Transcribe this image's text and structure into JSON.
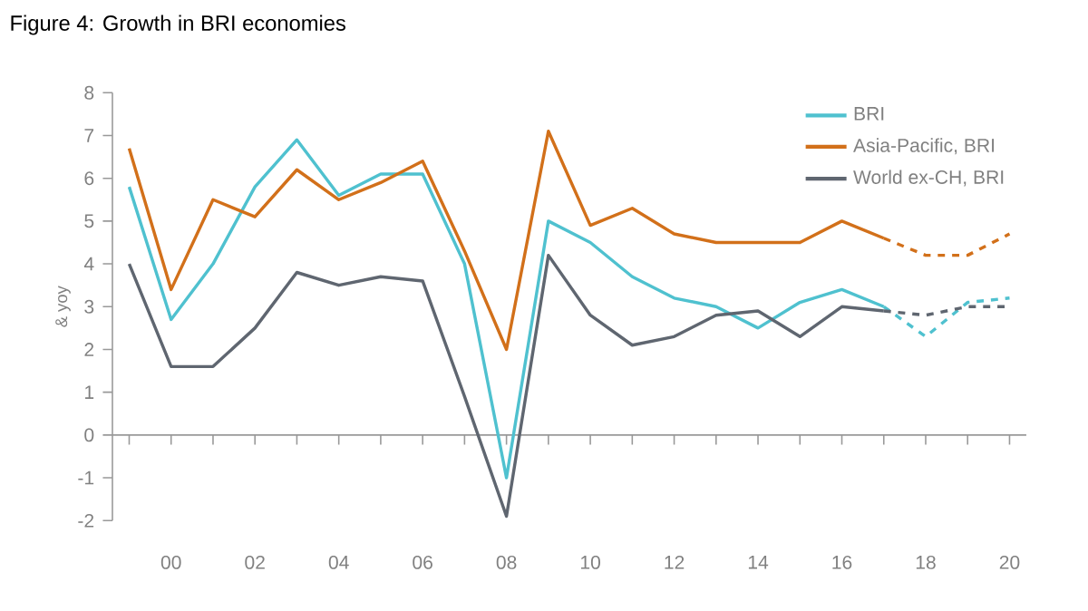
{
  "chart_data": {
    "type": "line",
    "title": "Figure 4: Growth in BRI economies",
    "ylabel": "& yoy",
    "x": [
      1999,
      2000,
      2001,
      2002,
      2003,
      2004,
      2005,
      2006,
      2007,
      2008,
      2009,
      2010,
      2011,
      2012,
      2013,
      2014,
      2015,
      2016,
      2017,
      2018,
      2019,
      2020
    ],
    "xlim": [
      1998.6,
      2020.4
    ],
    "xticks": [
      {
        "value": 1999,
        "label": null
      },
      {
        "value": 2000,
        "label": "00"
      },
      {
        "value": 2001,
        "label": null
      },
      {
        "value": 2002,
        "label": "02"
      },
      {
        "value": 2003,
        "label": null
      },
      {
        "value": 2004,
        "label": "04"
      },
      {
        "value": 2005,
        "label": null
      },
      {
        "value": 2006,
        "label": "06"
      },
      {
        "value": 2007,
        "label": null
      },
      {
        "value": 2008,
        "label": "08"
      },
      {
        "value": 2009,
        "label": null
      },
      {
        "value": 2010,
        "label": "10"
      },
      {
        "value": 2011,
        "label": null
      },
      {
        "value": 2012,
        "label": "12"
      },
      {
        "value": 2013,
        "label": null
      },
      {
        "value": 2014,
        "label": "14"
      },
      {
        "value": 2015,
        "label": null
      },
      {
        "value": 2016,
        "label": "16"
      },
      {
        "value": 2017,
        "label": null
      },
      {
        "value": 2018,
        "label": "18"
      },
      {
        "value": 2019,
        "label": null
      },
      {
        "value": 2020,
        "label": "20"
      }
    ],
    "ylim": [
      -2,
      8
    ],
    "yticks": [
      -2,
      -1,
      0,
      1,
      2,
      3,
      4,
      5,
      6,
      7,
      8
    ],
    "legend": "top right",
    "series": [
      {
        "name": "BRI",
        "color": "#4fc1cf",
        "line_style": "solid",
        "values": [
          5.8,
          2.7,
          4.0,
          5.8,
          6.9,
          5.6,
          6.1,
          6.1,
          4.0,
          -1.0,
          5.0,
          4.5,
          3.7,
          3.2,
          3.0,
          2.5,
          3.1,
          3.4,
          3.0,
          null,
          null,
          null
        ]
      },
      {
        "name": "Asia-Pacific, BRI",
        "color": "#d2701a",
        "line_style": "solid",
        "values": [
          6.7,
          3.4,
          5.5,
          5.1,
          6.2,
          5.5,
          5.9,
          6.4,
          4.3,
          2.0,
          7.1,
          4.9,
          5.3,
          4.7,
          4.5,
          4.5,
          4.5,
          5.0,
          4.6,
          null,
          null,
          null
        ]
      },
      {
        "name": "World ex-CH, BRI",
        "color": "#5f6670",
        "line_style": "solid",
        "values": [
          4.0,
          1.6,
          1.6,
          2.5,
          3.8,
          3.5,
          3.7,
          3.6,
          0.9,
          -1.9,
          4.2,
          2.8,
          2.1,
          2.3,
          2.8,
          2.9,
          2.3,
          3.0,
          2.9,
          null,
          null,
          null
        ]
      },
      {
        "color": "#4fc1cf",
        "line_style": "dashed",
        "values": [
          null,
          null,
          null,
          null,
          null,
          null,
          null,
          null,
          null,
          null,
          null,
          null,
          null,
          null,
          null,
          null,
          null,
          null,
          3.0,
          2.3,
          3.1,
          3.2
        ]
      },
      {
        "color": "#d2701a",
        "line_style": "dashed",
        "values": [
          null,
          null,
          null,
          null,
          null,
          null,
          null,
          null,
          null,
          null,
          null,
          null,
          null,
          null,
          null,
          null,
          null,
          null,
          4.6,
          4.2,
          4.2,
          4.7
        ]
      },
      {
        "color": "#5f6670",
        "line_style": "dashed",
        "values": [
          null,
          null,
          null,
          null,
          null,
          null,
          null,
          null,
          null,
          null,
          null,
          null,
          null,
          null,
          null,
          null,
          null,
          null,
          2.9,
          2.8,
          3.0,
          3.0
        ]
      }
    ]
  }
}
